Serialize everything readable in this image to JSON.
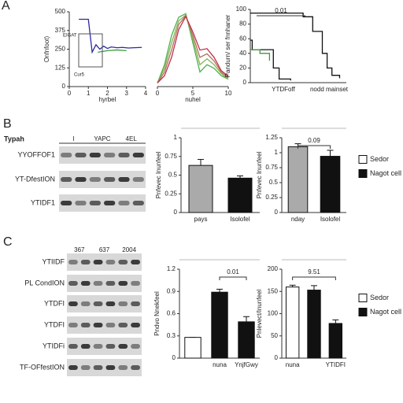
{
  "panels": {
    "a": "A",
    "b": "B",
    "c": "C"
  },
  "blots": {
    "b": {
      "header": "Typah",
      "lanes": [
        "I",
        "YAPC",
        "4EL"
      ],
      "rows": [
        "YYOFFOF1",
        "YT-DfestION",
        "YTIDF1"
      ]
    },
    "c": {
      "lanes": [
        "367",
        "637",
        "2004"
      ],
      "rows": [
        "YTIIDF",
        "PL CondION",
        "YTDFI",
        "YTDFI",
        "YTIDFi",
        "TF-OFfestION"
      ]
    }
  },
  "chart_data": [
    {
      "type": "line",
      "xlabel": "hyrbel",
      "ylabel": "Onfnfoot)",
      "annotations": [
        "EIGAT",
        "Cur5"
      ],
      "xlim": [
        0,
        4
      ],
      "xticks": [
        0,
        1,
        2,
        3,
        4
      ],
      "ylim": [
        0,
        500
      ],
      "yticks": [
        0,
        125,
        250,
        375,
        500
      ],
      "series": [
        {
          "color": "#2a2aa0",
          "x": [
            0.5,
            1,
            1.2,
            1.4,
            1.6,
            1.8,
            2,
            2.2,
            2.5,
            2.8,
            3.1,
            3.4,
            3.8
          ],
          "values": [
            450,
            450,
            230,
            280,
            250,
            270,
            255,
            265,
            260,
            262,
            258,
            260,
            262
          ]
        },
        {
          "color": "#3c9a3c",
          "x": [
            1.5,
            2,
            2.5,
            3
          ],
          "values": [
            230,
            240,
            245,
            240
          ]
        }
      ]
    },
    {
      "type": "line",
      "xlabel": "nuhel",
      "xlim": [
        0,
        10
      ],
      "xticks": [
        0,
        5,
        10
      ],
      "ylim": [
        0,
        110
      ],
      "series": [
        {
          "color": "#4caf50",
          "x": [
            0,
            1,
            2,
            3,
            4,
            5,
            6,
            7,
            8,
            9,
            10
          ],
          "values": [
            5,
            30,
            70,
            95,
            100,
            60,
            20,
            30,
            25,
            15,
            10
          ]
        },
        {
          "color": "#8bb050",
          "x": [
            0,
            1,
            2,
            3,
            4,
            5,
            6,
            7,
            8,
            9,
            10
          ],
          "values": [
            5,
            25,
            60,
            90,
            98,
            65,
            30,
            38,
            30,
            18,
            10
          ]
        },
        {
          "color": "#b07060",
          "x": [
            0,
            1,
            2,
            3,
            4,
            5,
            6,
            7,
            8,
            9,
            10
          ],
          "values": [
            5,
            20,
            50,
            85,
            97,
            70,
            40,
            45,
            35,
            20,
            12
          ]
        },
        {
          "color": "#c0304a",
          "x": [
            0,
            1,
            2,
            3,
            4,
            5,
            6,
            7,
            8,
            9,
            10
          ],
          "values": [
            5,
            15,
            40,
            78,
            96,
            75,
            50,
            52,
            40,
            22,
            14
          ]
        }
      ]
    },
    {
      "type": "step",
      "ylabel": "Pandurn/ ser fnnhaner",
      "annotations": [
        "0.01",
        "YTDFoff",
        "nodd mainset"
      ],
      "xlim": [
        0,
        10
      ],
      "ylim": [
        0,
        100
      ],
      "yticks": [
        0,
        20,
        40,
        60,
        80,
        100
      ],
      "series": [
        {
          "color": "#111",
          "x": [
            0,
            0.2,
            1.2,
            2.4,
            3,
            4.2
          ],
          "values": [
            58,
            45,
            45,
            20,
            5,
            3
          ]
        },
        {
          "color": "#111",
          "x": [
            0,
            3.5,
            5.5,
            6.5,
            7.5,
            8,
            8.5,
            9.3
          ],
          "values": [
            95,
            95,
            90,
            70,
            40,
            20,
            10,
            6
          ]
        },
        {
          "color": "#3c9a3c",
          "x": [
            0,
            1,
            2
          ],
          "values": [
            45,
            40,
            30
          ]
        }
      ]
    },
    {
      "type": "bar",
      "ylabel": "Pnfevec Inunfeel",
      "categories": [
        "pays",
        "Isolofel"
      ],
      "values": [
        0.63,
        0.46
      ],
      "errors": [
        0.08,
        0.03
      ],
      "colors": [
        "#aaaaaa",
        "#111111"
      ],
      "ylim": [
        0,
        1
      ],
      "yticks": [
        0,
        0.25,
        0.5,
        0.75,
        1
      ]
    },
    {
      "type": "bar",
      "ylabel": "Pnfevec Inunfeel",
      "annotation": "0.09",
      "categories": [
        "nday",
        "Isolofel"
      ],
      "values": [
        1.1,
        0.94
      ],
      "errors": [
        0.05,
        0.1
      ],
      "colors": [
        "#aaaaaa",
        "#111111"
      ],
      "ylim": [
        0,
        1.25
      ],
      "yticks": [
        0,
        0.25,
        0.5,
        0.75,
        1,
        1.25
      ],
      "legend": [
        "Sedor",
        "Nagot cell"
      ],
      "legend_colors": [
        "#ffffff",
        "#111111"
      ]
    },
    {
      "type": "bar",
      "ylabel": "Pndvo Nnekfeel",
      "annotation": "0.01",
      "categories": [
        null,
        "nuna",
        "YnjfGwy"
      ],
      "values": [
        0.28,
        0.89,
        0.49
      ],
      "errors": [
        0,
        0.04,
        0.07
      ],
      "colors": [
        "#ffffff",
        "#111111",
        "#111111"
      ],
      "ylim": [
        0,
        1.2
      ],
      "yticks": [
        0,
        0.3,
        0.6,
        0.9,
        1.2
      ]
    },
    {
      "type": "bar",
      "ylabel": "Pnlevect/Inunfeel",
      "annotation": "9.51",
      "categories": [
        "nuna",
        null,
        "YTIDFI"
      ],
      "values": [
        160,
        153,
        78
      ],
      "errors": [
        4,
        10,
        8
      ],
      "colors": [
        "#ffffff",
        "#111111",
        "#111111"
      ],
      "ylim": [
        0,
        200
      ],
      "yticks": [
        0,
        50,
        100,
        150,
        200
      ],
      "legend": [
        "Sedor",
        "Nagot cell"
      ],
      "legend_colors": [
        "#ffffff",
        "#111111"
      ]
    }
  ]
}
